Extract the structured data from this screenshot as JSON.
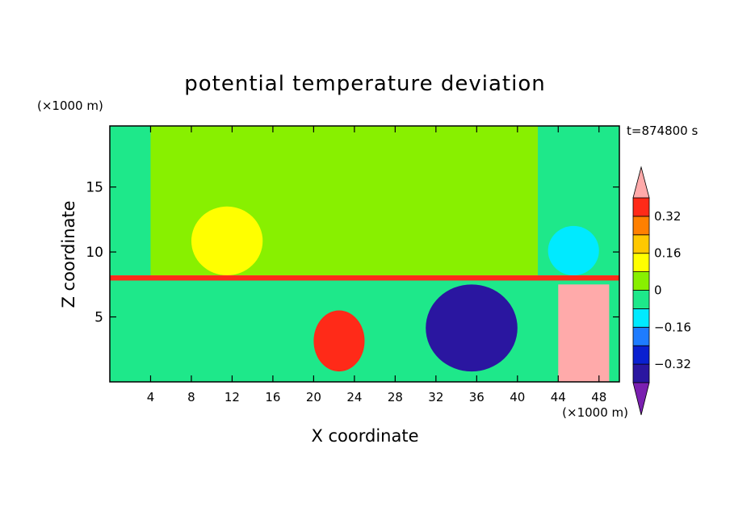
{
  "chart_data": {
    "type": "heatmap",
    "title": "potential temperature deviation",
    "xlabel": "X coordinate",
    "ylabel": "Z coordinate",
    "x_unit": "(×1000 m)",
    "y_unit": "(×1000 m)",
    "time_label": "t=874800 s",
    "xlim": [
      0,
      50
    ],
    "ylim": [
      0,
      19.7
    ],
    "x_ticks": [
      4,
      8,
      12,
      16,
      20,
      24,
      28,
      32,
      36,
      40,
      44,
      48
    ],
    "y_ticks": [
      5,
      10,
      15
    ],
    "colorbar": {
      "levels": [
        -0.48,
        -0.4,
        -0.32,
        -0.24,
        -0.16,
        -0.08,
        0,
        0.08,
        0.16,
        0.24,
        0.32,
        0.4
      ],
      "tick_labels": [
        "0.32",
        "0.16",
        "0",
        "−0.16",
        "−0.32"
      ],
      "tick_values": [
        0.32,
        0.16,
        0,
        -0.16,
        -0.32
      ],
      "colors": [
        "#7a1fb0",
        "#2a16a0",
        "#0a20d0",
        "#1e7cff",
        "#00eaff",
        "#1ee88a",
        "#88f000",
        "#ffff00",
        "#ffc800",
        "#ff8000",
        "#ff2a18",
        "#ffaaaa"
      ],
      "extend": "both"
    },
    "regions": [
      {
        "name": "upper-background",
        "x": [
          0,
          50
        ],
        "z": [
          8.2,
          19.7
        ],
        "value": 0.04
      },
      {
        "name": "upper-left-column",
        "x": [
          0,
          4
        ],
        "z": [
          8.2,
          19.7
        ],
        "value": -0.04
      },
      {
        "name": "upper-right-column",
        "x": [
          42,
          50
        ],
        "z": [
          8.2,
          19.7
        ],
        "value": -0.04
      },
      {
        "name": "warm-anomaly",
        "x": [
          8,
          15
        ],
        "z": [
          8.2,
          13.5
        ],
        "value": 0.12
      },
      {
        "name": "interface-layer",
        "x": [
          0,
          50
        ],
        "z": [
          7.8,
          8.2
        ],
        "value": 0.36
      },
      {
        "name": "lower-background",
        "x": [
          0,
          50
        ],
        "z": [
          0,
          7.8
        ],
        "value": -0.04
      },
      {
        "name": "warm-blob",
        "x": [
          20,
          25
        ],
        "z": [
          0.8,
          5.5
        ],
        "value": 0.32
      },
      {
        "name": "cold-vortex",
        "x": [
          31,
          40
        ],
        "z": [
          0.8,
          7.5
        ],
        "value": -0.4
      },
      {
        "name": "warm-column-right",
        "x": [
          44,
          49
        ],
        "z": [
          0,
          7.5
        ],
        "value": 0.44
      },
      {
        "name": "cold-upper-right",
        "x": [
          43,
          48
        ],
        "z": [
          8.2,
          12
        ],
        "value": -0.16
      }
    ]
  }
}
